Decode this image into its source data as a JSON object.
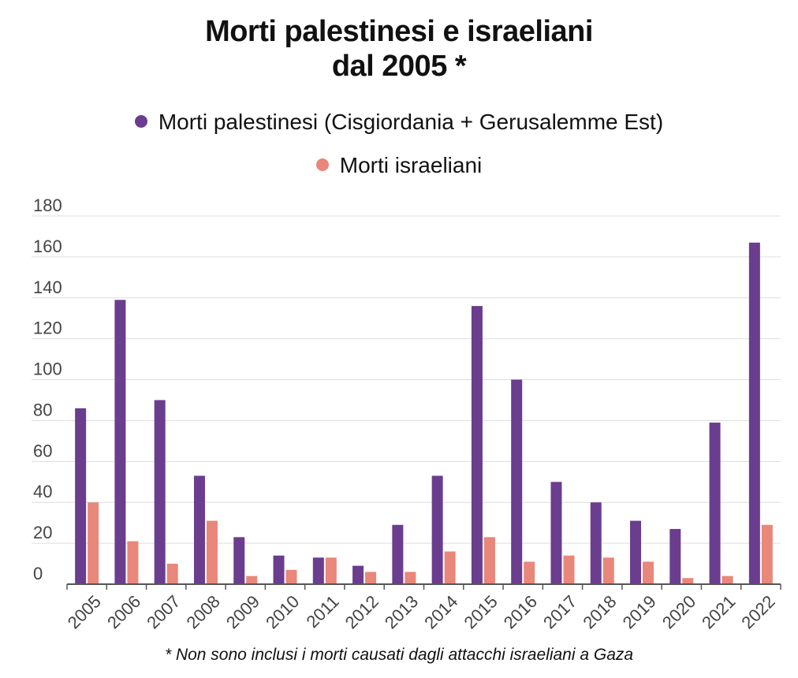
{
  "title_line1": "Morti palestinesi e israeliani",
  "title_line2": "dal 2005 *",
  "footnote": "* Non sono inclusi i morti causati dagli attacchi israeliani a Gaza",
  "chart_data": {
    "type": "bar",
    "title": "Morti palestinesi e israeliani dal 2005 *",
    "xlabel": "",
    "ylabel": "",
    "ylim": [
      0,
      180
    ],
    "yticks": [
      0,
      20,
      40,
      60,
      80,
      100,
      120,
      140,
      160,
      180
    ],
    "grid": true,
    "legend_position": "top-center",
    "categories": [
      "2005",
      "2006",
      "2007",
      "2008",
      "2009",
      "2010",
      "2011",
      "2012",
      "2013",
      "2014",
      "2015",
      "2016",
      "2017",
      "2018",
      "2019",
      "2020",
      "2021",
      "2022"
    ],
    "series": [
      {
        "name": "Morti palestinesi (Cisgiordania + Gerusalemme Est)",
        "color": "#6a3d8f",
        "values": [
          86,
          139,
          90,
          53,
          23,
          14,
          13,
          9,
          29,
          53,
          136,
          100,
          50,
          40,
          31,
          27,
          79,
          167
        ]
      },
      {
        "name": "Morti israeliani",
        "color": "#e8877a",
        "values": [
          40,
          21,
          10,
          31,
          4,
          7,
          13,
          6,
          6,
          16,
          23,
          11,
          14,
          13,
          11,
          3,
          4,
          29
        ]
      }
    ]
  }
}
